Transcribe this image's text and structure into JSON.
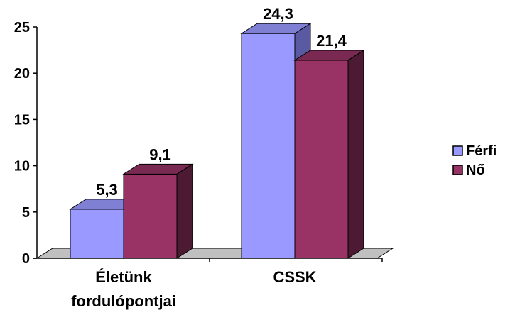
{
  "chart_data": {
    "type": "bar",
    "categories": [
      "Életünk fordulópontjai",
      "CSSK"
    ],
    "category_lines": [
      [
        "Életünk",
        "fordulópontjai"
      ],
      [
        "CSSK"
      ]
    ],
    "series": [
      {
        "name": "Férfi",
        "values": [
          5.3,
          24.3
        ],
        "labels": [
          "5,3",
          "24,3"
        ],
        "color": "#9999ff",
        "top_color": "#7f7fd4",
        "side_color": "#5a5aa3"
      },
      {
        "name": "Nő",
        "values": [
          9.1,
          21.4
        ],
        "labels": [
          "9,1",
          "21,4"
        ],
        "color": "#993366",
        "top_color": "#7a2952",
        "side_color": "#4d1a33"
      }
    ],
    "ylim": [
      0,
      25
    ],
    "yticks": [
      0,
      5,
      10,
      15,
      20,
      25
    ],
    "ytick_labels": [
      "0",
      "5",
      "10",
      "15",
      "20",
      "25"
    ],
    "title": "",
    "xlabel": "",
    "ylabel": "",
    "grid": false,
    "legend": "right",
    "style": "3d-bar"
  }
}
